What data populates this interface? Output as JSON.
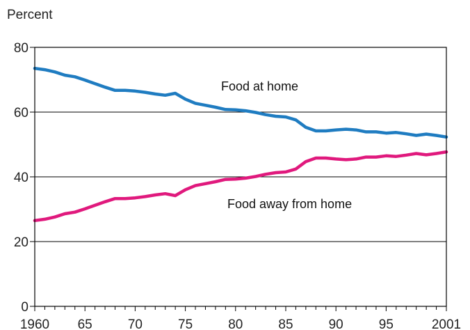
{
  "chart_data": {
    "type": "line",
    "ylabel": "Percent",
    "ylim": [
      0,
      80
    ],
    "xlim": [
      1960,
      2001
    ],
    "yticks": [
      0,
      20,
      40,
      60,
      80
    ],
    "xticks": [
      1960,
      1965,
      1970,
      1975,
      1980,
      1985,
      1990,
      1995,
      2001
    ],
    "xtick_labels": [
      "1960",
      "65",
      "70",
      "75",
      "80",
      "85",
      "90",
      "95",
      "2001"
    ],
    "grid": "horizontal",
    "colors": {
      "home": "#1f7cc1",
      "away": "#e0197d"
    },
    "x": [
      1960,
      1961,
      1962,
      1963,
      1964,
      1965,
      1966,
      1967,
      1968,
      1969,
      1970,
      1971,
      1972,
      1973,
      1974,
      1975,
      1976,
      1977,
      1978,
      1979,
      1980,
      1981,
      1982,
      1983,
      1984,
      1985,
      1986,
      1987,
      1988,
      1989,
      1990,
      1991,
      1992,
      1993,
      1994,
      1995,
      1996,
      1997,
      1998,
      1999,
      2000,
      2001
    ],
    "series": [
      {
        "key": "home",
        "name": "Food at home",
        "values": [
          73.5,
          73.1,
          72.4,
          71.4,
          70.9,
          69.9,
          68.8,
          67.7,
          66.7,
          66.7,
          66.5,
          66.1,
          65.6,
          65.2,
          65.8,
          64.0,
          62.7,
          62.1,
          61.5,
          60.8,
          60.7,
          60.4,
          59.9,
          59.2,
          58.7,
          58.5,
          57.6,
          55.3,
          54.2,
          54.2,
          54.5,
          54.7,
          54.5,
          53.9,
          53.9,
          53.5,
          53.7,
          53.3,
          52.8,
          53.2,
          52.8,
          52.3
        ]
      },
      {
        "key": "away",
        "name": "Food away from home",
        "values": [
          26.5,
          26.9,
          27.6,
          28.6,
          29.1,
          30.1,
          31.2,
          32.3,
          33.3,
          33.3,
          33.5,
          33.9,
          34.4,
          34.8,
          34.2,
          36.0,
          37.3,
          37.9,
          38.5,
          39.2,
          39.3,
          39.6,
          40.1,
          40.8,
          41.3,
          41.5,
          42.4,
          44.7,
          45.8,
          45.8,
          45.5,
          45.3,
          45.5,
          46.1,
          46.1,
          46.5,
          46.3,
          46.7,
          47.2,
          46.8,
          47.2,
          47.7
        ]
      }
    ]
  }
}
